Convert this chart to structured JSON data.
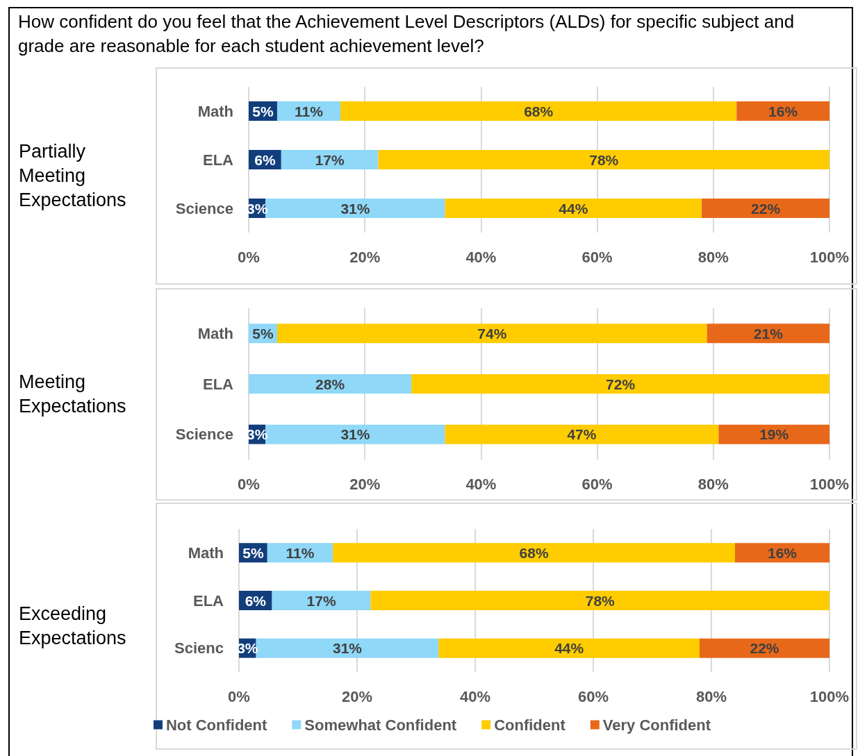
{
  "chart_data": [
    {
      "type": "bar",
      "orientation": "horizontal",
      "stacked": true,
      "title": "How confident do you feel that the Achievement Level Descriptors (ALDs) for specific subject and grade are reasonable for each student achievement level?",
      "ylabel": "Partially Meeting Expectations",
      "categories": [
        "Math",
        "ELA",
        "Science"
      ],
      "xlim": [
        0,
        100
      ],
      "xticks": [
        {
          "value": 0,
          "label": "0%"
        },
        {
          "value": 20,
          "label": "20%"
        },
        {
          "value": 40,
          "label": "40%"
        },
        {
          "value": 60,
          "label": "60%"
        },
        {
          "value": 80,
          "label": "80%"
        },
        {
          "value": 100,
          "label": "100%"
        }
      ],
      "grid": "x",
      "legend": false,
      "series": [
        {
          "color": "#133e7c",
          "values": [
            4.9,
            5.6,
            2.9
          ],
          "value_labels": [
            "5%",
            "6%",
            "3%"
          ]
        },
        {
          "color": "#8fd8f8",
          "values": [
            10.9,
            16.7,
            30.9
          ],
          "value_labels": [
            "11%",
            "17%",
            "31%"
          ]
        },
        {
          "color": "#ffcc00",
          "values": [
            68.2,
            77.7,
            44.2
          ],
          "value_labels": [
            "68%",
            "78%",
            "44%"
          ]
        },
        {
          "color": "#e8681a",
          "values": [
            16.0,
            null,
            22.0
          ],
          "value_labels": [
            "16%",
            null,
            "22%"
          ]
        }
      ]
    },
    {
      "type": "bar",
      "orientation": "horizontal",
      "stacked": true,
      "ylabel": "Meeting Expectations",
      "categories": [
        "Math",
        "ELA",
        "Science"
      ],
      "xlim": [
        0,
        100
      ],
      "xticks": [
        {
          "value": 0,
          "label": "0%"
        },
        {
          "value": 20,
          "label": "20%"
        },
        {
          "value": 40,
          "label": "40%"
        },
        {
          "value": 60,
          "label": "60%"
        },
        {
          "value": 80,
          "label": "80%"
        },
        {
          "value": 100,
          "label": "100%"
        }
      ],
      "grid": "x",
      "legend": false,
      "series": [
        {
          "color": "#133e7c",
          "values": [
            null,
            null,
            2.9
          ],
          "value_labels": [
            null,
            null,
            "3%"
          ]
        },
        {
          "color": "#8fd8f8",
          "values": [
            4.9,
            28.0,
            30.9
          ],
          "value_labels": [
            "5%",
            "28%",
            "31%"
          ]
        },
        {
          "color": "#ffcc00",
          "values": [
            74.0,
            72.0,
            47.1
          ],
          "value_labels": [
            "74%",
            "72%",
            "47%"
          ]
        },
        {
          "color": "#e8681a",
          "values": [
            21.1,
            null,
            19.1
          ],
          "value_labels": [
            "21%",
            null,
            "19%"
          ]
        }
      ]
    },
    {
      "type": "bar",
      "orientation": "horizontal",
      "stacked": true,
      "ylabel": "Exceeding Expectations",
      "categories": [
        "Math",
        "ELA",
        "Scienc"
      ],
      "xlim": [
        0,
        100
      ],
      "xticks": [
        {
          "value": 0,
          "label": "0%"
        },
        {
          "value": 20,
          "label": "20%"
        },
        {
          "value": 40,
          "label": "40%"
        },
        {
          "value": 60,
          "label": "60%"
        },
        {
          "value": 80,
          "label": "80%"
        },
        {
          "value": 100,
          "label": "100%"
        }
      ],
      "grid": "x",
      "legend": "bottom",
      "series": [
        {
          "name": "Not Confident",
          "color": "#133e7c",
          "values": [
            4.8,
            5.6,
            2.9
          ],
          "value_labels": [
            "5%",
            "6%",
            "3%"
          ]
        },
        {
          "name": "Somewhat Confident",
          "color": "#8fd8f8",
          "values": [
            11.1,
            16.7,
            30.9
          ],
          "value_labels": [
            "11%",
            "17%",
            "31%"
          ]
        },
        {
          "name": "Confident",
          "color": "#ffcc00",
          "values": [
            68.1,
            77.7,
            44.2
          ],
          "value_labels": [
            "68%",
            "78%",
            "44%"
          ]
        },
        {
          "name": "Very Confident",
          "color": "#e8681a",
          "values": [
            16.0,
            null,
            22.0
          ],
          "value_labels": [
            "16%",
            null,
            "22%"
          ]
        }
      ]
    }
  ]
}
